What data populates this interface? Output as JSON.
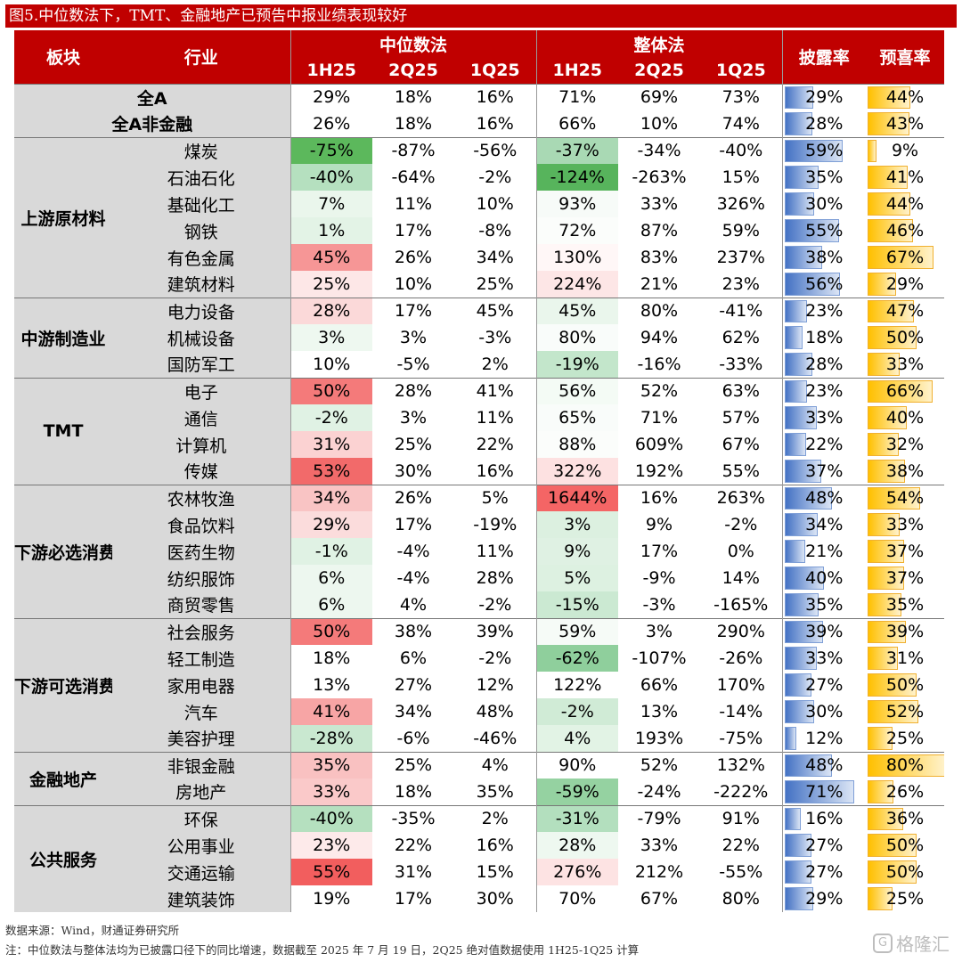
{
  "title": "图5.中位数法下，TMT、金融地产已预告中报业绩表现较好",
  "headers": {
    "segment": "板块",
    "industry": "行业",
    "median": "中位数法",
    "overall": "整体法",
    "disclosure": "披露率",
    "positive": "预喜率",
    "periods": [
      "1H25",
      "2Q25",
      "1Q25"
    ]
  },
  "colors": {
    "header_bg": "#c00000",
    "label_bg": "#d9d9d9",
    "bar_blue": "#4472c4",
    "bar_orange": "#ffc000"
  },
  "groups": [
    {
      "segment": "",
      "rows": [
        {
          "industry": "全A",
          "lead": true,
          "m": [
            "29%",
            "18%",
            "16%"
          ],
          "o": [
            "71%",
            "69%",
            "73%"
          ],
          "d": "29%",
          "p": "44%",
          "d_v": 0.29,
          "p_v": 0.44
        },
        {
          "industry": "全A非金融",
          "lead": true,
          "m": [
            "26%",
            "18%",
            "16%"
          ],
          "o": [
            "66%",
            "10%",
            "74%"
          ],
          "d": "28%",
          "p": "43%",
          "d_v": 0.28,
          "p_v": 0.43
        }
      ]
    },
    {
      "segment": "上游原材料",
      "rows": [
        {
          "industry": "煤炭",
          "m": [
            "-75%",
            "-87%",
            "-56%"
          ],
          "o": [
            "-37%",
            "-34%",
            "-40%"
          ],
          "d": "59%",
          "p": "9%",
          "d_v": 0.59,
          "p_v": 0.09,
          "mh": "#5cb85c",
          "oh": "#a9d9b4"
        },
        {
          "industry": "石油石化",
          "m": [
            "-40%",
            "-64%",
            "-2%"
          ],
          "o": [
            "-124%",
            "-263%",
            "15%"
          ],
          "d": "35%",
          "p": "41%",
          "d_v": 0.35,
          "p_v": 0.41,
          "mh": "#b5e0bf",
          "oh": "#57b45c"
        },
        {
          "industry": "基础化工",
          "m": [
            "7%",
            "11%",
            "10%"
          ],
          "o": [
            "93%",
            "33%",
            "326%"
          ],
          "d": "30%",
          "p": "44%",
          "d_v": 0.3,
          "p_v": 0.44,
          "mh": "#eaf6ec",
          "oh": "#f7fbf8"
        },
        {
          "industry": "钢铁",
          "m": [
            "1%",
            "17%",
            "-8%"
          ],
          "o": [
            "72%",
            "87%",
            "59%"
          ],
          "d": "55%",
          "p": "46%",
          "d_v": 0.55,
          "p_v": 0.46,
          "mh": "#e3f3e6",
          "oh": "#fbfdfb"
        },
        {
          "industry": "有色金属",
          "m": [
            "45%",
            "26%",
            "34%"
          ],
          "o": [
            "130%",
            "83%",
            "237%"
          ],
          "d": "38%",
          "p": "67%",
          "d_v": 0.38,
          "p_v": 0.67,
          "mh": "#f69696",
          "oh": "#fff7f7"
        },
        {
          "industry": "建筑材料",
          "m": [
            "25%",
            "10%",
            "25%"
          ],
          "o": [
            "224%",
            "21%",
            "23%"
          ],
          "d": "56%",
          "p": "29%",
          "d_v": 0.56,
          "p_v": 0.29,
          "mh": "#fde7e7",
          "oh": "#fde6e6"
        }
      ]
    },
    {
      "segment": "中游制造业",
      "rows": [
        {
          "industry": "电力设备",
          "m": [
            "28%",
            "17%",
            "45%"
          ],
          "o": [
            "45%",
            "80%",
            "-41%"
          ],
          "d": "23%",
          "p": "47%",
          "d_v": 0.23,
          "p_v": 0.47,
          "mh": "#fbd9d9",
          "oh": "#eaf6ec"
        },
        {
          "industry": "机械设备",
          "m": [
            "3%",
            "3%",
            "-3%"
          ],
          "o": [
            "80%",
            "94%",
            "62%"
          ],
          "d": "18%",
          "p": "50%",
          "d_v": 0.18,
          "p_v": 0.5,
          "mh": "#eef8f0",
          "oh": "#f9fcfa"
        },
        {
          "industry": "国防军工",
          "m": [
            "10%",
            "-5%",
            "2%"
          ],
          "o": [
            "-19%",
            "-16%",
            "-33%"
          ],
          "d": "28%",
          "p": "33%",
          "d_v": 0.28,
          "p_v": 0.33,
          "mh": "#ffffff",
          "oh": "#c3e6cb"
        }
      ]
    },
    {
      "segment": "TMT",
      "rows": [
        {
          "industry": "电子",
          "m": [
            "50%",
            "28%",
            "41%"
          ],
          "o": [
            "56%",
            "52%",
            "63%"
          ],
          "d": "23%",
          "p": "66%",
          "d_v": 0.23,
          "p_v": 0.66,
          "mh": "#f47a7a",
          "oh": "#f4fbf5"
        },
        {
          "industry": "通信",
          "m": [
            "-2%",
            "3%",
            "11%"
          ],
          "o": [
            "65%",
            "71%",
            "57%"
          ],
          "d": "33%",
          "p": "40%",
          "d_v": 0.33,
          "p_v": 0.4,
          "mh": "#e0f2e4",
          "oh": "#f9fcfa"
        },
        {
          "industry": "计算机",
          "m": [
            "31%",
            "25%",
            "22%"
          ],
          "o": [
            "88%",
            "609%",
            "67%"
          ],
          "d": "22%",
          "p": "32%",
          "d_v": 0.22,
          "p_v": 0.32,
          "mh": "#fbd2d2",
          "oh": "#fbfdfb"
        },
        {
          "industry": "传媒",
          "m": [
            "53%",
            "30%",
            "16%"
          ],
          "o": [
            "322%",
            "192%",
            "55%"
          ],
          "d": "37%",
          "p": "38%",
          "d_v": 0.37,
          "p_v": 0.38,
          "mh": "#f26a6a",
          "oh": "#fde1e1"
        }
      ]
    },
    {
      "segment": "下游必选消费",
      "rows": [
        {
          "industry": "农林牧渔",
          "m": [
            "34%",
            "26%",
            "5%"
          ],
          "o": [
            "1644%",
            "16%",
            "263%"
          ],
          "d": "48%",
          "p": "54%",
          "d_v": 0.48,
          "p_v": 0.54,
          "mh": "#f9c4c4",
          "oh": "#f46565"
        },
        {
          "industry": "食品饮料",
          "m": [
            "29%",
            "17%",
            "-19%"
          ],
          "o": [
            "3%",
            "9%",
            "-2%"
          ],
          "d": "34%",
          "p": "33%",
          "d_v": 0.34,
          "p_v": 0.33,
          "mh": "#fbdcdc",
          "oh": "#dcf0e0"
        },
        {
          "industry": "医药生物",
          "m": [
            "-1%",
            "-4%",
            "11%"
          ],
          "o": [
            "9%",
            "17%",
            "0%"
          ],
          "d": "21%",
          "p": "37%",
          "d_v": 0.21,
          "p_v": 0.37,
          "mh": "#e0f2e4",
          "oh": "#dff1e3"
        },
        {
          "industry": "纺织服饰",
          "m": [
            "6%",
            "-4%",
            "28%"
          ],
          "o": [
            "5%",
            "-9%",
            "14%"
          ],
          "d": "40%",
          "p": "37%",
          "d_v": 0.4,
          "p_v": 0.37,
          "mh": "#edf7ef",
          "oh": "#ddf1e1"
        },
        {
          "industry": "商贸零售",
          "m": [
            "6%",
            "4%",
            "-2%"
          ],
          "o": [
            "-15%",
            "-3%",
            "-165%"
          ],
          "d": "35%",
          "p": "35%",
          "d_v": 0.35,
          "p_v": 0.35,
          "mh": "#edf7ef",
          "oh": "#cbe9d2"
        }
      ]
    },
    {
      "segment": "下游可选消费",
      "rows": [
        {
          "industry": "社会服务",
          "m": [
            "50%",
            "38%",
            "39%"
          ],
          "o": [
            "59%",
            "3%",
            "290%"
          ],
          "d": "39%",
          "p": "39%",
          "d_v": 0.39,
          "p_v": 0.39,
          "mh": "#f47a7a",
          "oh": "#f6fbf7"
        },
        {
          "industry": "轻工制造",
          "m": [
            "18%",
            "6%",
            "-2%"
          ],
          "o": [
            "-62%",
            "-107%",
            "-26%"
          ],
          "d": "33%",
          "p": "31%",
          "d_v": 0.33,
          "p_v": 0.31,
          "mh": "#ffffff",
          "oh": "#8fcf9c"
        },
        {
          "industry": "家用电器",
          "m": [
            "13%",
            "27%",
            "12%"
          ],
          "o": [
            "122%",
            "66%",
            "170%"
          ],
          "d": "27%",
          "p": "50%",
          "d_v": 0.27,
          "p_v": 0.5,
          "mh": "#ffffff",
          "oh": "#ffffff"
        },
        {
          "industry": "汽车",
          "m": [
            "41%",
            "34%",
            "48%"
          ],
          "o": [
            "-2%",
            "13%",
            "-14%"
          ],
          "d": "30%",
          "p": "52%",
          "d_v": 0.3,
          "p_v": 0.52,
          "mh": "#f7a5a5",
          "oh": "#d0ebd6"
        },
        {
          "industry": "美容护理",
          "m": [
            "-28%",
            "-6%",
            "-46%"
          ],
          "o": [
            "4%",
            "193%",
            "-75%"
          ],
          "d": "12%",
          "p": "25%",
          "d_v": 0.12,
          "p_v": 0.25,
          "mh": "#c9e8d0",
          "oh": "#e2f3e5"
        }
      ]
    },
    {
      "segment": "金融地产",
      "rows": [
        {
          "industry": "非银金融",
          "m": [
            "35%",
            "25%",
            "4%"
          ],
          "o": [
            "90%",
            "52%",
            "132%"
          ],
          "d": "48%",
          "p": "80%",
          "d_v": 0.48,
          "p_v": 0.8,
          "mh": "#f9c1c1",
          "oh": "#ffffff"
        },
        {
          "industry": "房地产",
          "m": [
            "33%",
            "18%",
            "35%"
          ],
          "o": [
            "-59%",
            "-24%",
            "-222%"
          ],
          "d": "71%",
          "p": "26%",
          "d_v": 0.71,
          "p_v": 0.26,
          "mh": "#fac9c9",
          "oh": "#95d2a1"
        }
      ]
    },
    {
      "segment": "公共服务",
      "rows": [
        {
          "industry": "环保",
          "m": [
            "-40%",
            "-35%",
            "2%"
          ],
          "o": [
            "-31%",
            "-79%",
            "91%"
          ],
          "d": "16%",
          "p": "36%",
          "d_v": 0.16,
          "p_v": 0.36,
          "mh": "#b5e0bf",
          "oh": "#b3dfbe"
        },
        {
          "industry": "公用事业",
          "m": [
            "23%",
            "22%",
            "16%"
          ],
          "o": [
            "28%",
            "33%",
            "22%"
          ],
          "d": "27%",
          "p": "50%",
          "d_v": 0.27,
          "p_v": 0.5,
          "mh": "#fdeaea",
          "oh": "#eef8f0"
        },
        {
          "industry": "交通运输",
          "m": [
            "55%",
            "31%",
            "15%"
          ],
          "o": [
            "276%",
            "212%",
            "-55%"
          ],
          "d": "27%",
          "p": "50%",
          "d_v": 0.27,
          "p_v": 0.5,
          "mh": "#f25e5e",
          "oh": "#fde3e3"
        },
        {
          "industry": "建筑装饰",
          "m": [
            "19%",
            "17%",
            "30%"
          ],
          "o": [
            "70%",
            "67%",
            "80%"
          ],
          "d": "29%",
          "p": "25%",
          "d_v": 0.29,
          "p_v": 0.25,
          "mh": "#ffffff",
          "oh": "#ffffff"
        }
      ]
    }
  ],
  "source": "数据来源：Wind，财通证券研究所",
  "note": "注：中位数法与整体法均为已披露口径下的同比增速，数据截至 2025 年 7 月 19 日，2Q25 绝对值数据使用 1H25-1Q25 计算",
  "watermark": {
    "icon": "gelonghui-logo-icon",
    "text": "格隆汇"
  }
}
